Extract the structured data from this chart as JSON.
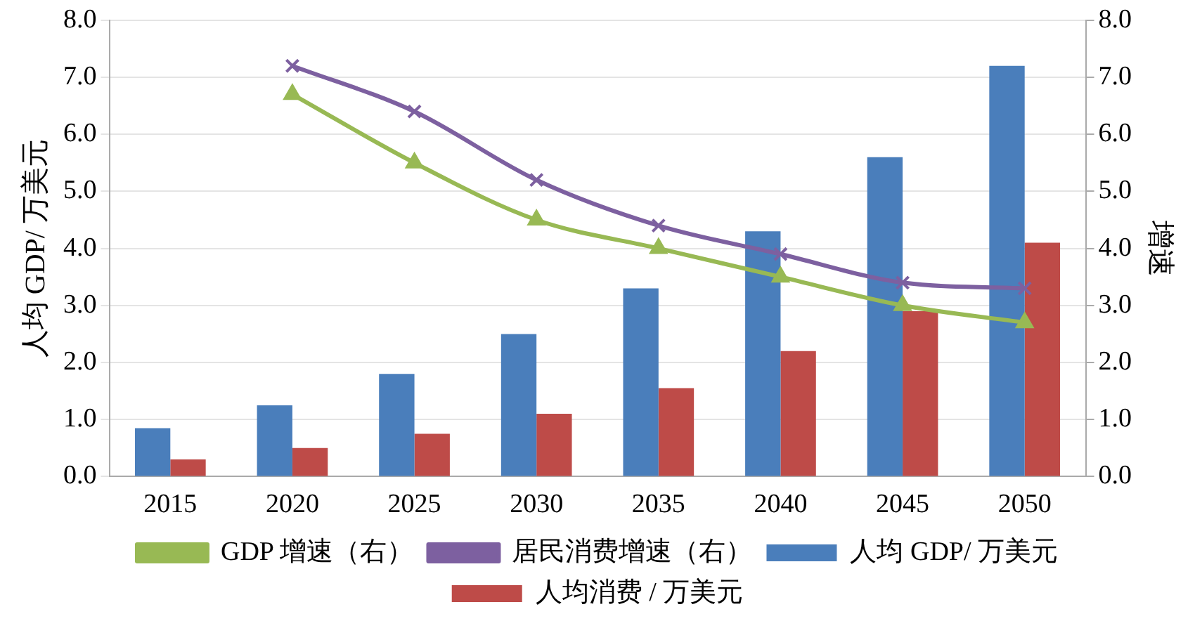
{
  "chart_data": {
    "type": "bar",
    "ylabel": "人均 GDP/ 万美元",
    "y2label": "增速",
    "categories": [
      "2015",
      "2020",
      "2025",
      "2030",
      "2035",
      "2040",
      "2045",
      "2050"
    ],
    "series": [
      {
        "name": "人均 GDP/ 万美元",
        "color": "#4a7ebb",
        "values": [
          0.85,
          1.25,
          1.8,
          2.5,
          3.3,
          4.3,
          5.6,
          7.2
        ]
      },
      {
        "name": "人均消费 / 万美元",
        "color": "#be4b48",
        "values": [
          0.3,
          0.5,
          0.75,
          1.1,
          1.55,
          2.2,
          2.9,
          4.1
        ]
      },
      {
        "name": "GDP 增速（右）",
        "type": "line",
        "axis": "y2",
        "marker": "triangle",
        "color": "#98b954",
        "values": [
          null,
          6.7,
          5.5,
          4.5,
          4.0,
          3.5,
          3.0,
          2.7
        ]
      },
      {
        "name": "居民消费增速（右）",
        "type": "line",
        "axis": "y2",
        "marker": "cross",
        "color": "#7d60a0",
        "values": [
          null,
          7.2,
          6.4,
          5.2,
          4.4,
          3.9,
          3.4,
          3.3
        ]
      }
    ],
    "ylim": [
      0,
      8
    ],
    "yticks": [
      {
        "value": 0,
        "label": "0.0"
      },
      {
        "value": 1,
        "label": "1.0"
      },
      {
        "value": 2,
        "label": "2.0"
      },
      {
        "value": 3,
        "label": "3.0"
      },
      {
        "value": 4,
        "label": "4.0"
      },
      {
        "value": 5,
        "label": "5.0"
      },
      {
        "value": 6,
        "label": "6.0"
      },
      {
        "value": 7,
        "label": "7.0"
      },
      {
        "value": 8,
        "label": "8.0"
      }
    ],
    "y2lim": [
      0,
      8
    ],
    "y2ticks": [
      {
        "value": 0,
        "label": "0.0"
      },
      {
        "value": 1,
        "label": "1.0"
      },
      {
        "value": 2,
        "label": "2.0"
      },
      {
        "value": 3,
        "label": "3.0"
      },
      {
        "value": 4,
        "label": "4.0"
      },
      {
        "value": 5,
        "label": "5.0"
      },
      {
        "value": 6,
        "label": "6.0"
      },
      {
        "value": 7,
        "label": "7.0"
      },
      {
        "value": 8,
        "label": "8.0"
      }
    ],
    "grid": "y",
    "legend": "bottom"
  }
}
